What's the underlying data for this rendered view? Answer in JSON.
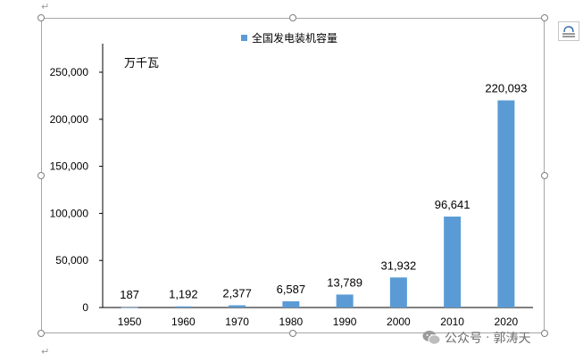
{
  "chart_data": {
    "type": "bar",
    "title": "",
    "legend": {
      "label": "全国发电装机容量",
      "position": "top-center"
    },
    "unit_label": "万千瓦",
    "categories": [
      "1950",
      "1960",
      "1970",
      "1980",
      "1990",
      "2000",
      "2010",
      "2020"
    ],
    "series": [
      {
        "name": "全国发电装机容量",
        "values": [
          187,
          1192,
          2377,
          6587,
          13789,
          31932,
          96641,
          220093
        ],
        "labels": [
          "187",
          "1,192",
          "2,377",
          "6,587",
          "13,789",
          "31,932",
          "96,641",
          "220,093"
        ]
      }
    ],
    "ylim": [
      0,
      250000
    ],
    "yticks": [
      0,
      50000,
      100000,
      150000,
      200000,
      250000
    ],
    "ytick_labels": [
      "0",
      "50,000",
      "100,000",
      "150,000",
      "200,000",
      "250,000"
    ],
    "grid": false,
    "colors": {
      "bar": "#5b9bd5",
      "axis": "#000000"
    }
  },
  "watermark": {
    "label": "公众号",
    "separator": "·",
    "author": "郭涛天"
  }
}
